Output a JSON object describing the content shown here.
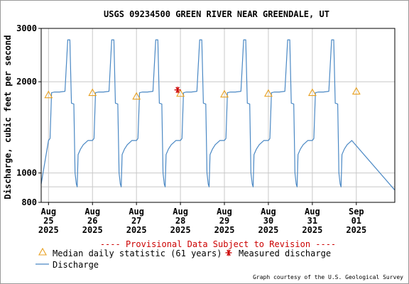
{
  "chart_data": {
    "type": "line",
    "title": "USGS 09234500 GREEN RIVER NEAR GREENDALE, UT",
    "ylabel": "Discharge, cubic feet per second",
    "xlabel": "",
    "y_scale": "log",
    "ylim": [
      800,
      3000
    ],
    "y_ticks": [
      800,
      1000,
      2000,
      3000
    ],
    "y_tick_labels": [
      "800",
      "1000",
      "2000",
      "3000"
    ],
    "x_range": [
      "2025-08-24T20:00",
      "2025-09-01T21:00"
    ],
    "x_ticks": [
      {
        "date": "2025-08-25",
        "label": [
          "Aug",
          "25",
          "2025"
        ]
      },
      {
        "date": "2025-08-26",
        "label": [
          "Aug",
          "26",
          "2025"
        ]
      },
      {
        "date": "2025-08-27",
        "label": [
          "Aug",
          "27",
          "2025"
        ]
      },
      {
        "date": "2025-08-28",
        "label": [
          "Aug",
          "28",
          "2025"
        ]
      },
      {
        "date": "2025-08-29",
        "label": [
          "Aug",
          "29",
          "2025"
        ]
      },
      {
        "date": "2025-08-30",
        "label": [
          "Aug",
          "30",
          "2025"
        ]
      },
      {
        "date": "2025-08-31",
        "label": [
          "Aug",
          "31",
          "2025"
        ]
      },
      {
        "date": "2025-09-01",
        "label": [
          "Sep",
          "01",
          "2025"
        ]
      }
    ],
    "grid": true,
    "series": [
      {
        "name": "Discharge",
        "color": "#4a88c4",
        "daily_pattern_time_discharge": [
          [
            "00:00",
            1280
          ],
          [
            "00:50",
            1300
          ],
          [
            "01:40",
            1840
          ],
          [
            "03:20",
            1850
          ],
          [
            "06:00",
            1850
          ],
          [
            "09:00",
            1860
          ],
          [
            "10:30",
            2750
          ],
          [
            "11:40",
            2750
          ],
          [
            "12:30",
            1700
          ],
          [
            "13:50",
            1690
          ],
          [
            "14:30",
            1000
          ],
          [
            "15:10",
            920
          ],
          [
            "15:40",
            900
          ],
          [
            "16:10",
            1150
          ],
          [
            "17:30",
            1200
          ],
          [
            "19:00",
            1240
          ],
          [
            "21:30",
            1280
          ]
        ],
        "days": [
          "2025-08-25",
          "2025-08-26",
          "2025-08-27",
          "2025-08-28",
          "2025-08-29",
          "2025-08-30",
          "2025-08-31"
        ],
        "first_value": [
          "2025-08-24T20:00",
          920
        ],
        "last_value": [
          "2025-09-01T20:50",
          880
        ]
      },
      {
        "name": "Median daily statistic (61 years)",
        "marker": "triangle",
        "color": "#e8a020",
        "points": [
          [
            "2025-08-25",
            1810
          ],
          [
            "2025-08-26",
            1840
          ],
          [
            "2025-08-27",
            1790
          ],
          [
            "2025-08-28",
            1830
          ],
          [
            "2025-08-29",
            1820
          ],
          [
            "2025-08-30",
            1830
          ],
          [
            "2025-08-31",
            1840
          ],
          [
            "2025-09-01",
            1860
          ]
        ]
      },
      {
        "name": "Measured discharge",
        "marker": "asterisk",
        "color": "#cc0000",
        "points": [
          [
            "2025-08-28",
            1880
          ]
        ]
      }
    ],
    "notice": "---- Provisional Data Subject to Revision ----",
    "legend_placement": "bottom-left",
    "credit": "Graph courtesy of the U.S. Geological Survey"
  },
  "colors": {
    "plot_border": "#000000",
    "grid": "#c8c8c8",
    "notice": "#cc0000",
    "text": "#000000"
  }
}
